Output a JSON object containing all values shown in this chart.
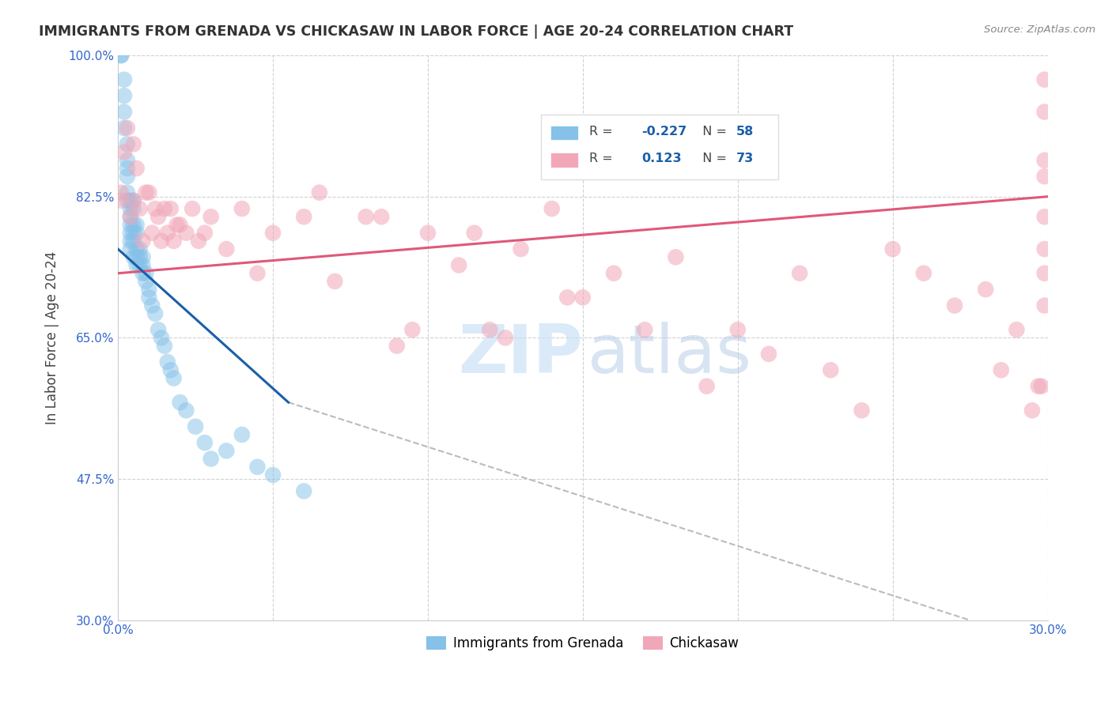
{
  "title": "IMMIGRANTS FROM GRENADA VS CHICKASAW IN LABOR FORCE | AGE 20-24 CORRELATION CHART",
  "source": "Source: ZipAtlas.com",
  "ylabel": "In Labor Force | Age 20-24",
  "x_ticks": [
    0.0,
    0.05,
    0.1,
    0.15,
    0.2,
    0.25,
    0.3
  ],
  "y_ticks": [
    0.3,
    0.475,
    0.65,
    0.825,
    1.0
  ],
  "y_tick_labels": [
    "30.0%",
    "47.5%",
    "65.0%",
    "82.5%",
    "100.0%"
  ],
  "xlim": [
    0.0,
    0.3
  ],
  "ylim": [
    0.3,
    1.0
  ],
  "legend_label1": "Immigrants from Grenada",
  "legend_label2": "Chickasaw",
  "r1": "-0.227",
  "n1": "58",
  "r2": "0.123",
  "n2": "73",
  "color_blue": "#85c1e9",
  "color_pink": "#f1a7b8",
  "color_blue_line": "#1a5fa8",
  "color_pink_line": "#e05878",
  "color_dashed": "#bbbbbb",
  "blue_dots_x": [
    0.001,
    0.001,
    0.002,
    0.002,
    0.002,
    0.002,
    0.003,
    0.003,
    0.003,
    0.003,
    0.003,
    0.003,
    0.004,
    0.004,
    0.004,
    0.004,
    0.004,
    0.004,
    0.004,
    0.005,
    0.005,
    0.005,
    0.005,
    0.005,
    0.005,
    0.006,
    0.006,
    0.006,
    0.006,
    0.006,
    0.007,
    0.007,
    0.007,
    0.008,
    0.008,
    0.008,
    0.009,
    0.009,
    0.01,
    0.01,
    0.011,
    0.012,
    0.013,
    0.014,
    0.015,
    0.016,
    0.017,
    0.018,
    0.02,
    0.022,
    0.025,
    0.028,
    0.03,
    0.035,
    0.04,
    0.045,
    0.05,
    0.06
  ],
  "blue_dots_y": [
    1.0,
    1.0,
    0.97,
    0.95,
    0.93,
    0.91,
    0.89,
    0.87,
    0.86,
    0.85,
    0.83,
    0.82,
    0.82,
    0.81,
    0.8,
    0.79,
    0.78,
    0.77,
    0.76,
    0.82,
    0.81,
    0.79,
    0.78,
    0.77,
    0.75,
    0.79,
    0.78,
    0.76,
    0.75,
    0.74,
    0.76,
    0.75,
    0.74,
    0.75,
    0.74,
    0.73,
    0.73,
    0.72,
    0.71,
    0.7,
    0.69,
    0.68,
    0.66,
    0.65,
    0.64,
    0.62,
    0.61,
    0.6,
    0.57,
    0.56,
    0.54,
    0.52,
    0.5,
    0.51,
    0.53,
    0.49,
    0.48,
    0.46
  ],
  "pink_dots_x": [
    0.001,
    0.001,
    0.002,
    0.003,
    0.004,
    0.005,
    0.005,
    0.006,
    0.007,
    0.008,
    0.009,
    0.01,
    0.011,
    0.012,
    0.013,
    0.014,
    0.015,
    0.016,
    0.017,
    0.018,
    0.019,
    0.02,
    0.022,
    0.024,
    0.026,
    0.028,
    0.03,
    0.035,
    0.04,
    0.045,
    0.05,
    0.06,
    0.065,
    0.07,
    0.08,
    0.085,
    0.09,
    0.095,
    0.1,
    0.11,
    0.115,
    0.12,
    0.125,
    0.13,
    0.14,
    0.145,
    0.15,
    0.16,
    0.17,
    0.18,
    0.19,
    0.2,
    0.21,
    0.22,
    0.23,
    0.24,
    0.25,
    0.26,
    0.27,
    0.28,
    0.285,
    0.29,
    0.295,
    0.297,
    0.298,
    0.299,
    0.299,
    0.299,
    0.299,
    0.299,
    0.299,
    0.299,
    0.299
  ],
  "pink_dots_y": [
    0.83,
    0.82,
    0.88,
    0.91,
    0.8,
    0.89,
    0.82,
    0.86,
    0.81,
    0.77,
    0.83,
    0.83,
    0.78,
    0.81,
    0.8,
    0.77,
    0.81,
    0.78,
    0.81,
    0.77,
    0.79,
    0.79,
    0.78,
    0.81,
    0.77,
    0.78,
    0.8,
    0.76,
    0.81,
    0.73,
    0.78,
    0.8,
    0.83,
    0.72,
    0.8,
    0.8,
    0.64,
    0.66,
    0.78,
    0.74,
    0.78,
    0.66,
    0.65,
    0.76,
    0.81,
    0.7,
    0.7,
    0.73,
    0.66,
    0.75,
    0.59,
    0.66,
    0.63,
    0.73,
    0.61,
    0.56,
    0.76,
    0.73,
    0.69,
    0.71,
    0.61,
    0.66,
    0.56,
    0.59,
    0.59,
    0.97,
    0.93,
    0.87,
    0.85,
    0.8,
    0.76,
    0.73,
    0.69
  ],
  "blue_line_x": [
    0.0,
    0.055
  ],
  "blue_line_y": [
    0.76,
    0.57
  ],
  "pink_line_x": [
    0.0,
    0.3
  ],
  "pink_line_y": [
    0.73,
    0.825
  ],
  "dashed_line_x": [
    0.055,
    0.275
  ],
  "dashed_line_y": [
    0.57,
    0.3
  ],
  "watermark_zip": "ZIP",
  "watermark_atlas": "atlas",
  "background_color": "#ffffff",
  "grid_color": "#cccccc",
  "title_color": "#333333",
  "source_color": "#888888",
  "tick_color": "#3366cc",
  "label_color": "#444444"
}
